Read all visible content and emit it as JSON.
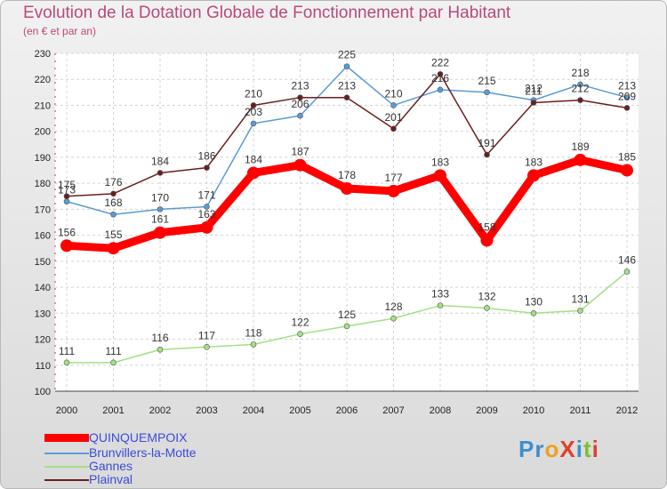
{
  "title": "Evolution de la Dotation Globale de Fonctionnement par Habitant",
  "subtitle": "(en € et par an)",
  "logo": "ProXiti",
  "colors": {
    "title": "#b84a7a",
    "quinquempoix": "#ff0000",
    "brunvillers": "#5b9bd5",
    "gannes": "#a3e085",
    "plainval": "#6b1e1e"
  },
  "chart_data": {
    "type": "line",
    "title": "Evolution de la Dotation Globale de Fonctionnement par Habitant",
    "subtitle": "(en € et par an)",
    "xlabel": "",
    "ylabel": "",
    "ylim": [
      100,
      230
    ],
    "yticks": [
      100,
      110,
      120,
      130,
      140,
      150,
      160,
      170,
      180,
      190,
      200,
      210,
      220,
      230
    ],
    "grid": true,
    "categories": [
      "2000",
      "2001",
      "2002",
      "2003",
      "2004",
      "2005",
      "2006",
      "2007",
      "2008",
      "2009",
      "2010",
      "2011",
      "2012"
    ],
    "series": [
      {
        "name": "QUINQUEMPOIX",
        "values": [
          156,
          155,
          161,
          163,
          184,
          187,
          178,
          177,
          183,
          158,
          183,
          189,
          185
        ]
      },
      {
        "name": "Brunvillers-la-Motte",
        "values": [
          173,
          168,
          170,
          171,
          203,
          206,
          225,
          210,
          216,
          215,
          212,
          218,
          213
        ]
      },
      {
        "name": "Gannes",
        "values": [
          111,
          111,
          116,
          117,
          118,
          122,
          125,
          128,
          133,
          132,
          130,
          131,
          146
        ]
      },
      {
        "name": "Plainval",
        "values": [
          175,
          176,
          184,
          186,
          210,
          213,
          213,
          201,
          222,
          191,
          211,
          212,
          209
        ]
      }
    ],
    "legend": "bottom-left"
  }
}
